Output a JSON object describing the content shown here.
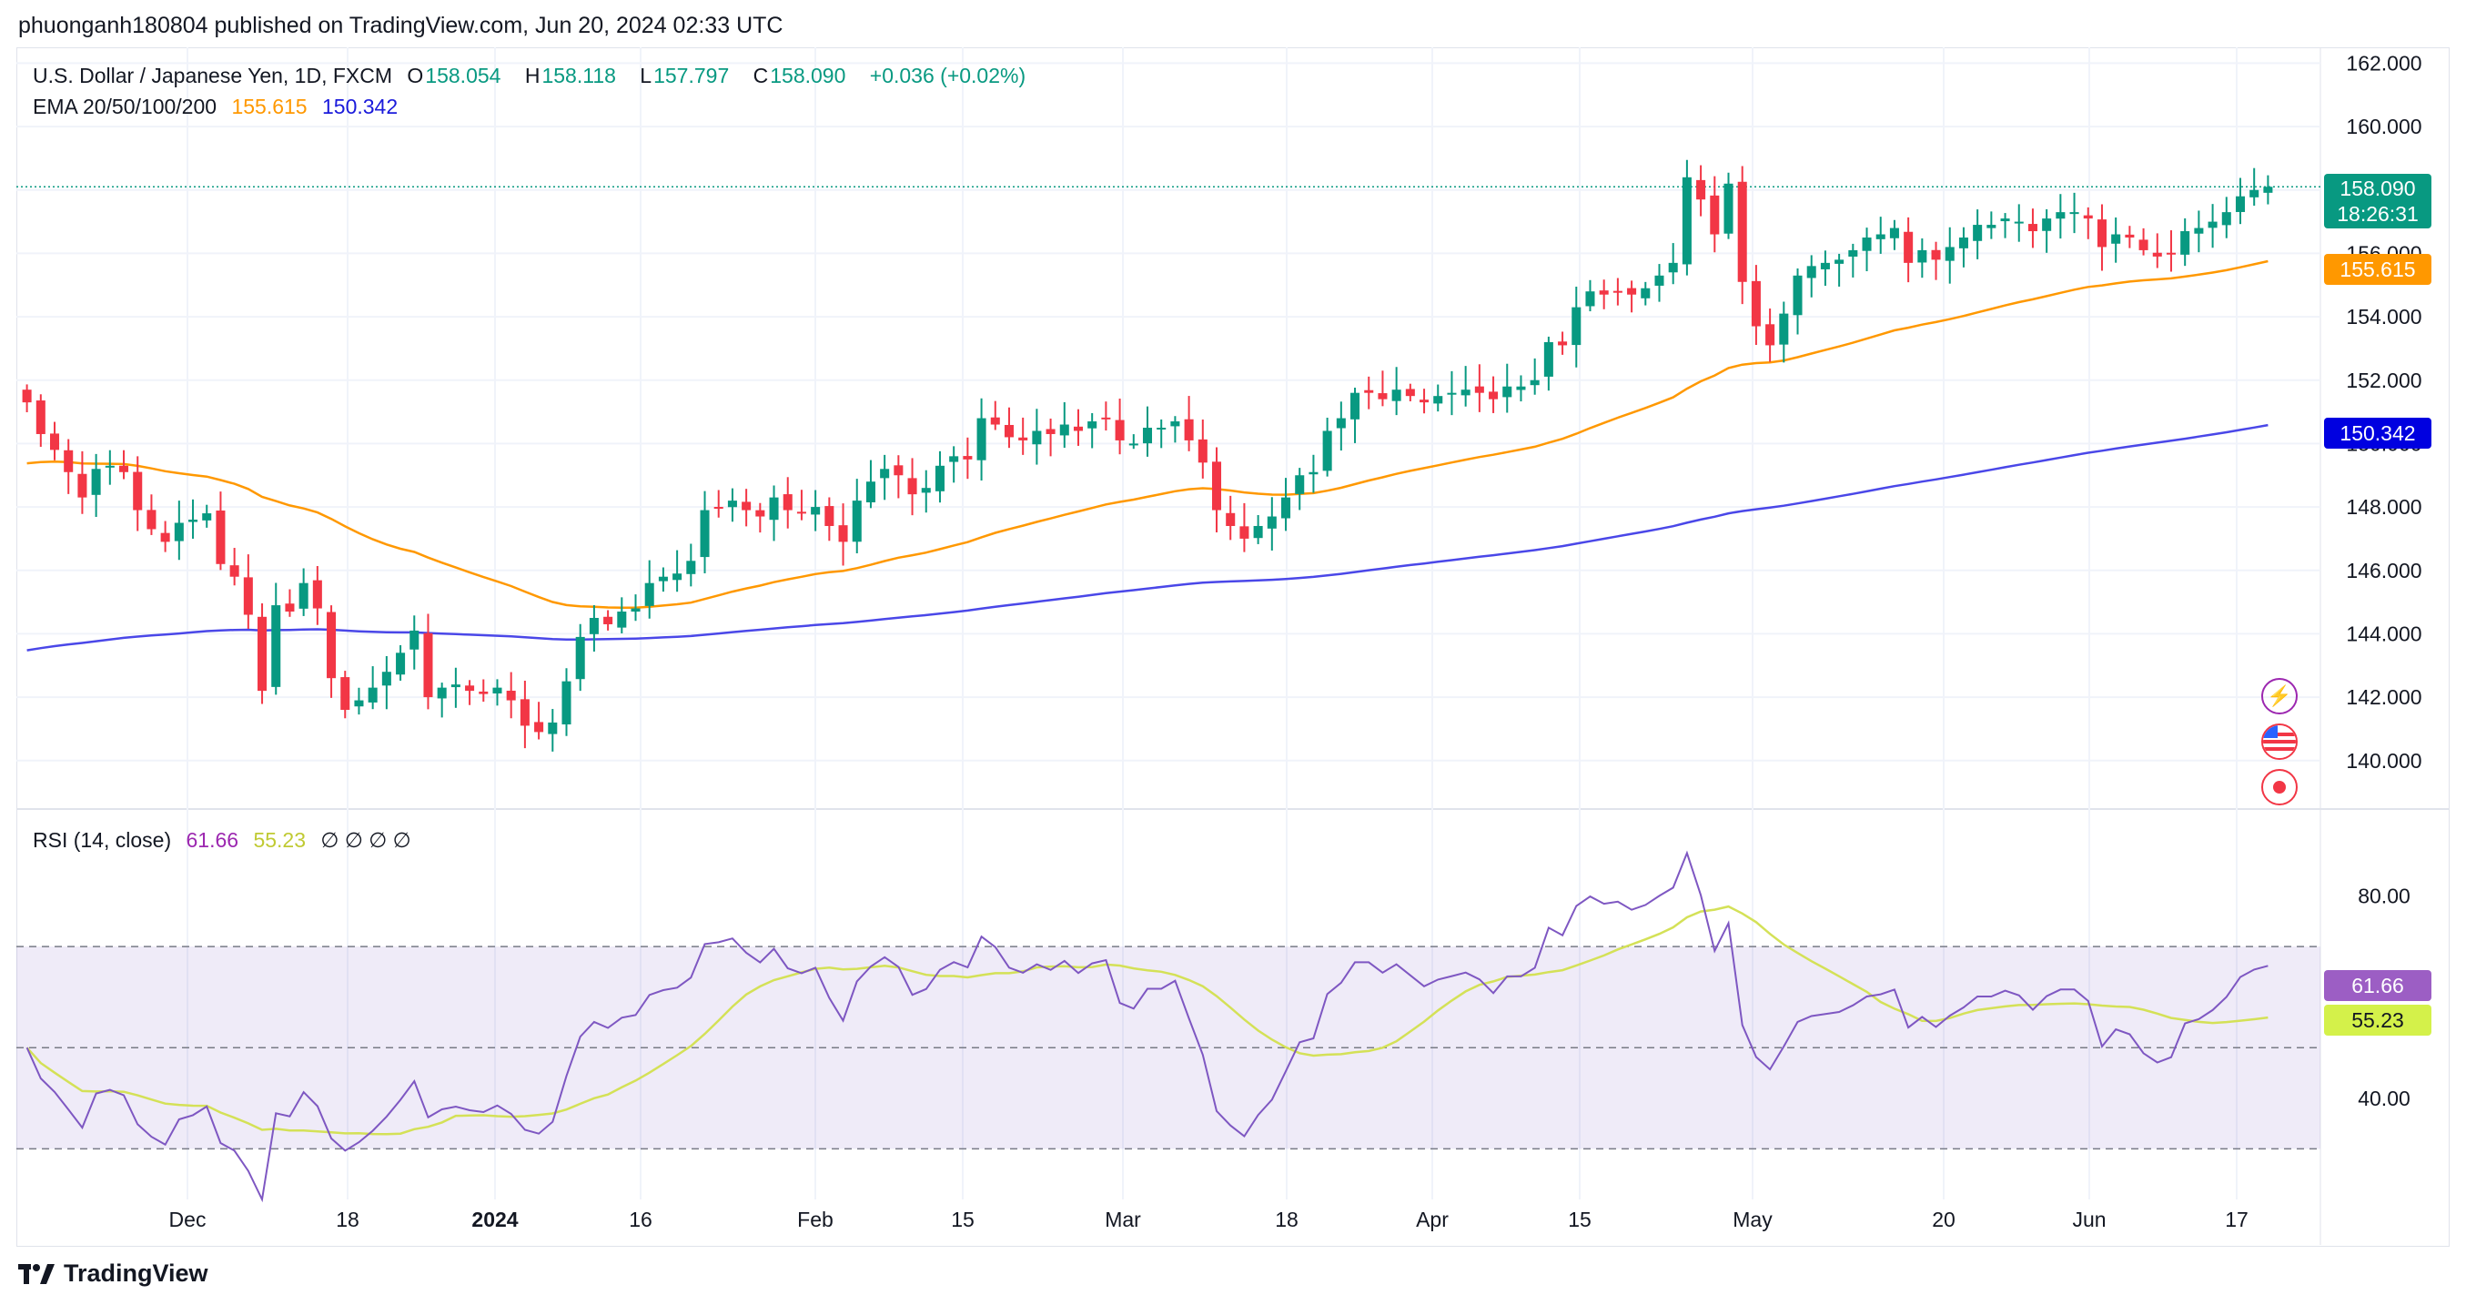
{
  "header": {
    "published": "phuonganh180804 published on TradingView.com, Jun 20, 2024 02:33 UTC"
  },
  "legend": {
    "symbol": "U.S. Dollar / Japanese Yen, 1D, FXCM",
    "o_label": "O",
    "o": "158.054",
    "h_label": "H",
    "h": "158.118",
    "l_label": "L",
    "l": "157.797",
    "c_label": "C",
    "c": "158.090",
    "change": "+0.036 (+0.02%)",
    "ema_label": "EMA 20/50/100/200",
    "ema_val_1": "155.615",
    "ema_val_2": "150.342",
    "rsi_label": "RSI (14, close)",
    "rsi_val": "61.66",
    "rsi_ma_val": "55.23",
    "rsi_empty": "∅ ∅ ∅ ∅"
  },
  "tags": {
    "last_price": "158.090",
    "countdown": "18:26:31",
    "ema_orange": "155.615",
    "ema_blue": "150.342",
    "rsi": "61.66",
    "rsi_ma": "55.23"
  },
  "footer": {
    "brand": "TradingView"
  },
  "icons": [
    "lightning-icon",
    "us-flag-icon",
    "record-icon"
  ],
  "colors": {
    "up": "#089981",
    "down": "#f23645",
    "ema_orange": "#ff9800",
    "ema_blue": "#2962ff",
    "rsi": "#7e57c2",
    "rsi_ma": "#d4e157"
  },
  "chart_data": [
    {
      "type": "candlestick",
      "title": "U.S. Dollar / Japanese Yen, 1D, FXCM",
      "x_ticks": [
        "Dec",
        "18",
        "2024",
        "16",
        "Feb",
        "15",
        "Mar",
        "18",
        "Apr",
        "15",
        "May",
        "20",
        "Jun",
        "17"
      ],
      "y_ticks": [
        "162.000",
        "160.000",
        "158.000",
        "156.000",
        "154.000",
        "152.000",
        "150.000",
        "148.000",
        "146.000",
        "144.000",
        "142.000",
        "140.000"
      ],
      "ylim": [
        138.5,
        162.5
      ],
      "candles_close": [
        151.3,
        150.3,
        149.8,
        149.1,
        148.3,
        149.2,
        149.3,
        149.1,
        147.9,
        147.3,
        146.9,
        147.5,
        147.6,
        147.8,
        146.2,
        145.8,
        144.6,
        142.2,
        144.9,
        144.7,
        145.6,
        144.8,
        142.6,
        141.6,
        141.9,
        142.3,
        142.8,
        143.4,
        144.1,
        142.0,
        142.3,
        142.4,
        142.2,
        142.1,
        142.3,
        141.9,
        141.1,
        140.9,
        141.2,
        142.5,
        143.9,
        144.5,
        144.3,
        144.7,
        144.8,
        145.6,
        145.8,
        145.9,
        146.3,
        147.9,
        148.0,
        148.2,
        147.9,
        147.7,
        148.3,
        147.9,
        147.8,
        148.0,
        147.4,
        146.9,
        148.2,
        148.8,
        149.2,
        149.0,
        148.4,
        148.6,
        149.3,
        149.6,
        149.5,
        150.8,
        150.6,
        150.2,
        150.1,
        150.4,
        150.3,
        150.6,
        150.4,
        150.7,
        150.8,
        150.1,
        150.0,
        150.5,
        150.5,
        150.7,
        150.1,
        149.4,
        147.9,
        147.4,
        147.0,
        147.4,
        147.7,
        148.3,
        149.0,
        149.1,
        150.4,
        150.8,
        151.6,
        151.6,
        151.4,
        151.7,
        151.5,
        151.3,
        151.5,
        151.6,
        151.7,
        151.6,
        151.4,
        151.8,
        151.8,
        152.0,
        153.2,
        153.1,
        154.3,
        154.8,
        154.7,
        154.8,
        154.7,
        154.9,
        155.3,
        155.7,
        158.4,
        157.7,
        156.6,
        158.2,
        155.1,
        153.7,
        153.1,
        154.1,
        155.3,
        155.6,
        155.7,
        155.8,
        156.1,
        156.5,
        156.6,
        156.8,
        155.7,
        156.1,
        155.8,
        156.2,
        156.5,
        156.9,
        156.9,
        157.1,
        157.0,
        156.7,
        157.1,
        157.3,
        157.3,
        157.1,
        156.2,
        156.6,
        156.5,
        156.1,
        155.9,
        156.0,
        156.7,
        156.8,
        157.0,
        157.3,
        157.8,
        158.0,
        158.1
      ]
    },
    {
      "type": "line",
      "title": "RSI (14, close)",
      "y_ticks": [
        "80.00",
        "40.00"
      ],
      "ylim": [
        20,
        97
      ],
      "bands": [
        70,
        50,
        30
      ],
      "series": [
        {
          "name": "RSI",
          "last": 61.66
        },
        {
          "name": "RSI MA",
          "last": 55.23
        }
      ]
    }
  ]
}
